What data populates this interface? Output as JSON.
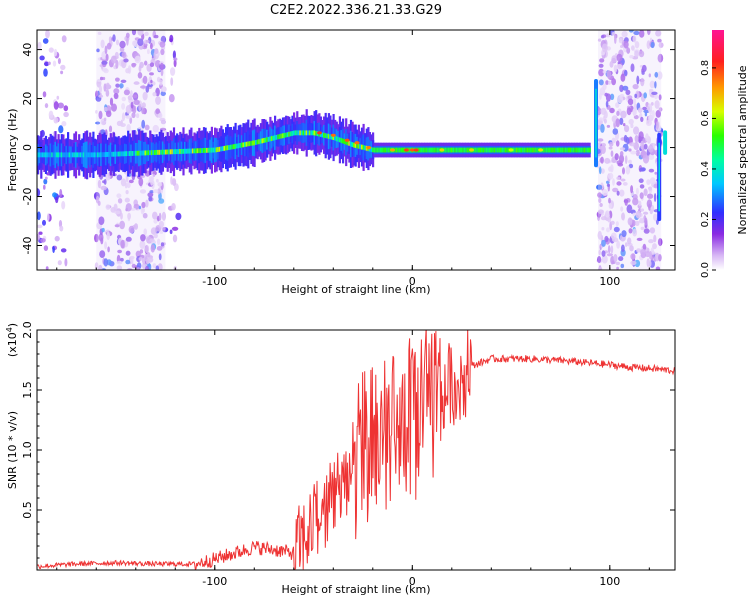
{
  "title": "C2E2.2022.336.21.33.G29",
  "chart_data": [
    {
      "type": "heatmap",
      "xlabel": "Height of straight line (km)",
      "ylabel": "Frequency (Hz)",
      "xlim": [
        -190,
        133
      ],
      "ylim": [
        -50,
        48
      ],
      "xticks": [
        -100,
        0,
        100
      ],
      "yticks": [
        -40,
        -20,
        0,
        20,
        40
      ],
      "colorbar": {
        "label": "Normalized spectral amplitude",
        "ticks": [
          "0.0",
          "0.2",
          "0.4",
          "0.6",
          "0.8"
        ],
        "range": [
          0,
          0.95
        ]
      },
      "ridge_frequency": {
        "x": [
          -190,
          -160,
          -130,
          -100,
          -80,
          -60,
          -50,
          -40,
          -30,
          -20,
          -10,
          0,
          20,
          50,
          90
        ],
        "y": [
          -3,
          -3,
          -2,
          -1,
          2,
          6,
          6,
          4,
          1,
          -1,
          -1,
          -1,
          -1,
          -1,
          -1
        ]
      }
    },
    {
      "type": "line",
      "xlabel": "Height of straight line (km)",
      "ylabel": "SNR (10 * v/v)",
      "y_multiplier": "(x10",
      "y_multiplier_exp": "4",
      "y_multiplier_close": ")",
      "xlim": [
        -190,
        133
      ],
      "ylim": [
        0,
        2.0
      ],
      "xticks": [
        -100,
        0,
        100
      ],
      "yticks": [
        "0.5",
        "1.0",
        "1.5",
        "2.0"
      ],
      "color": "#ee3333",
      "series": [
        {
          "x": [
            -190,
            -170,
            -150,
            -130,
            -110,
            -100,
            -90,
            -80,
            -70,
            -60,
            -50,
            -40,
            -30,
            -20,
            -10,
            0,
            10,
            20,
            30,
            40,
            60,
            80,
            100,
            110,
            120,
            133
          ],
          "y": [
            0.03,
            0.05,
            0.06,
            0.05,
            0.05,
            0.09,
            0.14,
            0.19,
            0.17,
            0.14,
            0.38,
            0.62,
            0.85,
            1.05,
            1.15,
            1.25,
            1.35,
            1.55,
            1.7,
            1.76,
            1.76,
            1.74,
            1.71,
            1.69,
            1.68,
            1.66
          ]
        }
      ]
    }
  ]
}
